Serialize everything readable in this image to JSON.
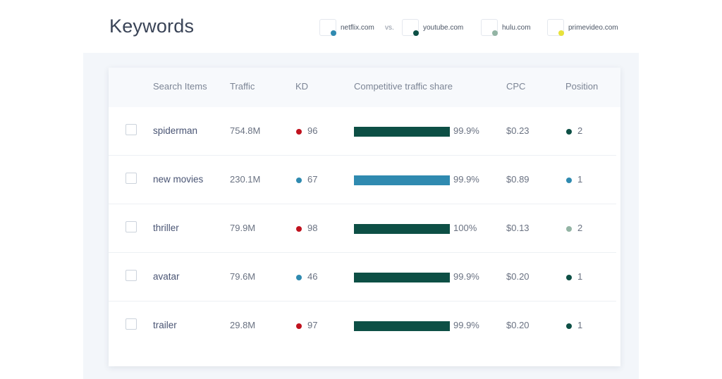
{
  "header": {
    "title": "Keywords",
    "vs_label": "vs.",
    "domains": [
      {
        "name": "netflix.com",
        "color": "#2f8ab0"
      },
      {
        "name": "youtube.com",
        "color": "#0d4f45"
      },
      {
        "name": "hulu.com",
        "color": "#93b4a4"
      },
      {
        "name": "primevideo.com",
        "color": "#e8e23a"
      }
    ]
  },
  "table": {
    "columns": [
      "Search Items",
      "Traffic",
      "KD",
      "Competitive traffic share",
      "CPC",
      "Position"
    ],
    "rows": [
      {
        "keyword": "spiderman",
        "traffic": "754.8M",
        "kd": "96",
        "kd_color": "#c0121e",
        "share": "99.9%",
        "share_fraction": 0.999,
        "bar_color": "#0d4f45",
        "cpc": "$0.23",
        "position": "2",
        "position_color": "#0d4f45"
      },
      {
        "keyword": "new movies",
        "traffic": "230.1M",
        "kd": "67",
        "kd_color": "#2f8ab0",
        "share": "99.9%",
        "share_fraction": 0.999,
        "bar_color": "#2f8ab0",
        "cpc": "$0.89",
        "position": "1",
        "position_color": "#2f8ab0"
      },
      {
        "keyword": "thriller",
        "traffic": "79.9M",
        "kd": "98",
        "kd_color": "#c0121e",
        "share": "100%",
        "share_fraction": 1.0,
        "bar_color": "#0d4f45",
        "cpc": "$0.13",
        "position": "2",
        "position_color": "#93b4a4"
      },
      {
        "keyword": "avatar",
        "traffic": "79.6M",
        "kd": "46",
        "kd_color": "#2f8ab0",
        "share": "99.9%",
        "share_fraction": 0.999,
        "bar_color": "#0d4f45",
        "cpc": "$0.20",
        "position": "1",
        "position_color": "#0d4f45"
      },
      {
        "keyword": "trailer",
        "traffic": "29.8M",
        "kd": "97",
        "kd_color": "#c0121e",
        "share": "99.9%",
        "share_fraction": 0.999,
        "bar_color": "#0d4f45",
        "cpc": "$0.20",
        "position": "1",
        "position_color": "#0d4f45"
      }
    ]
  }
}
